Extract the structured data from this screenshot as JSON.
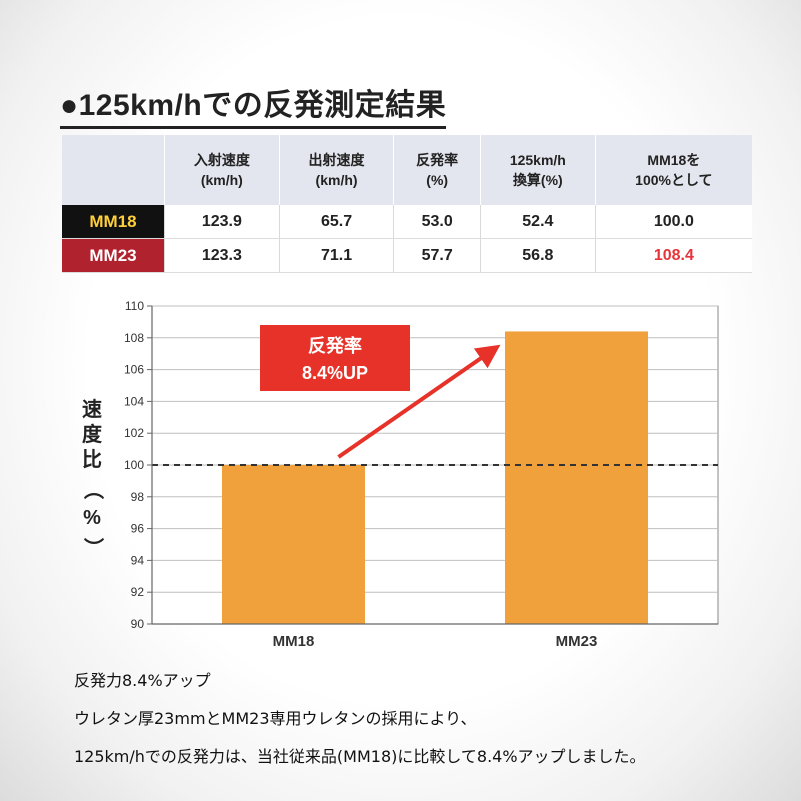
{
  "title": "●125km/hでの反発測定結果",
  "table": {
    "headers": [
      [
        "入射速度",
        "(km/h)"
      ],
      [
        "出射速度",
        "(km/h)"
      ],
      [
        "反発率",
        "(%)"
      ],
      [
        "125km/h",
        "換算(%)"
      ],
      [
        "MM18を",
        "100%として"
      ]
    ],
    "rows": [
      {
        "name": "MM18",
        "cells": [
          "123.9",
          "65.7",
          "53.0",
          "52.4",
          "100.0"
        ]
      },
      {
        "name": "MM23",
        "cells": [
          "123.3",
          "71.1",
          "57.7",
          "56.8",
          "108.4"
        ]
      }
    ],
    "highlight_color": "#e8333a"
  },
  "chart_data": {
    "type": "bar",
    "categories": [
      "MM18",
      "MM23"
    ],
    "values": [
      100.0,
      108.4
    ],
    "ylabel": [
      "速",
      "度",
      "比",
      "（",
      "%",
      "）"
    ],
    "ylim": [
      90,
      110
    ],
    "yticks": [
      "90",
      "92",
      "94",
      "96",
      "98",
      "100",
      "102",
      "104",
      "106",
      "108",
      "110"
    ],
    "ytick_values": [
      90,
      92,
      94,
      96,
      98,
      100,
      102,
      104,
      106,
      108,
      110
    ],
    "reference_line": 100,
    "grid": true,
    "bar_color": "#f0a13c",
    "annotation": [
      "反発率",
      "8.4%UP"
    ],
    "annotation_color": "#e63228"
  },
  "notes": [
    "反発力8.4%アップ",
    "ウレタン厚23mmとMM23専用ウレタンの採用により、",
    "125km/hでの反発力は、当社従来品(MM18)に比較して8.4%アップしました。"
  ]
}
